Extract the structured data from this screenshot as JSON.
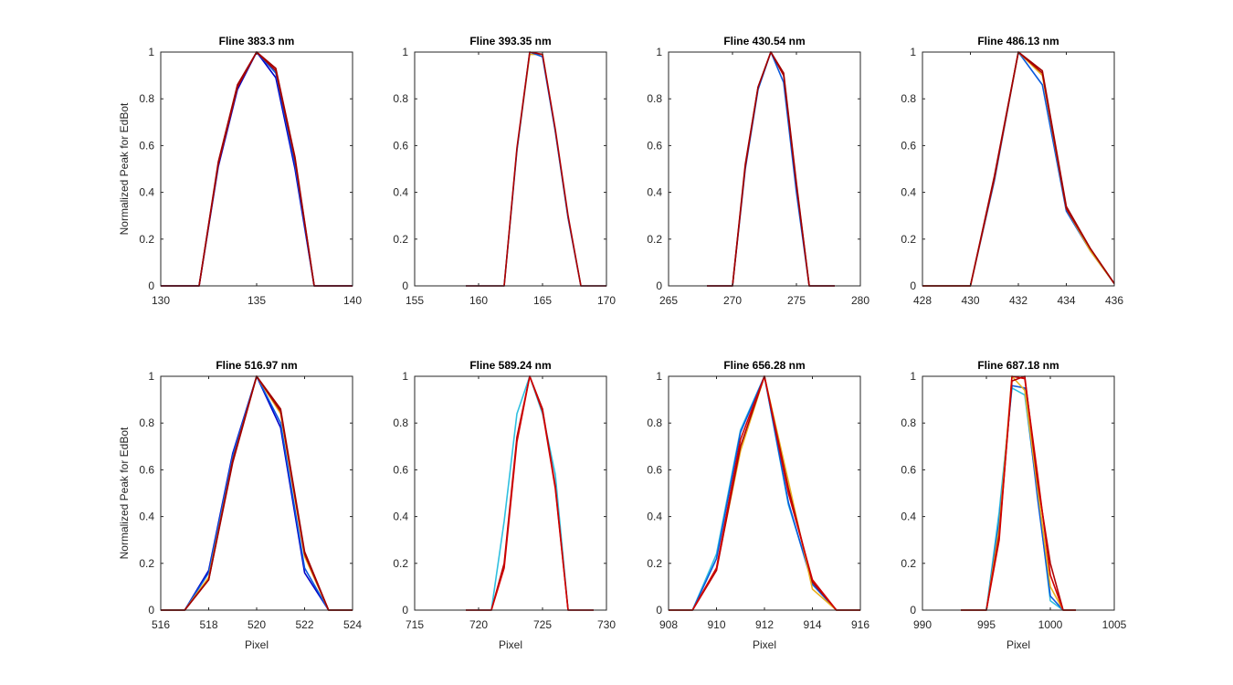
{
  "figure": {
    "background": "#ffffff"
  },
  "chart_data": [
    {
      "type": "line",
      "title": "Fline 383.3 nm",
      "xlabel": "",
      "ylabel": "Normalized Peak for EdBot",
      "xlim": [
        130,
        140
      ],
      "ylim": [
        0,
        1
      ],
      "xticks": [
        "130",
        "135",
        "140"
      ],
      "yticks": [
        "0",
        "0.2",
        "0.4",
        "0.6",
        "0.8",
        "1"
      ],
      "x": [
        130,
        131,
        132,
        133,
        134,
        135,
        136,
        137,
        138,
        139,
        140
      ],
      "series": [
        {
          "color": "#0000c8",
          "values": [
            0,
            0,
            0,
            0.51,
            0.84,
            1,
            0.89,
            0.5,
            0,
            0,
            0
          ]
        },
        {
          "color": "#0a5adc",
          "values": [
            0,
            0,
            0,
            0.52,
            0.85,
            1,
            0.91,
            0.52,
            0,
            0,
            0
          ]
        },
        {
          "color": "#b00000",
          "values": [
            0,
            0,
            0,
            0.52,
            0.85,
            1,
            0.92,
            0.54,
            0,
            0,
            0
          ]
        },
        {
          "color": "#a00000",
          "values": [
            0,
            0,
            0,
            0.53,
            0.86,
            1,
            0.93,
            0.55,
            0,
            0,
            0
          ]
        }
      ]
    },
    {
      "type": "line",
      "title": "Fline 393.35 nm",
      "xlabel": "",
      "ylabel": "",
      "xlim": [
        155,
        170
      ],
      "ylim": [
        0,
        1
      ],
      "xticks": [
        "155",
        "160",
        "165",
        "170"
      ],
      "yticks": [
        "0",
        "0.2",
        "0.4",
        "0.6",
        "0.8",
        "1"
      ],
      "x": [
        159,
        160,
        161,
        162,
        163,
        164,
        165,
        166,
        167,
        168,
        169,
        170
      ],
      "series": [
        {
          "color": "#e8b020",
          "values": [
            0,
            0,
            0,
            0,
            0.58,
            0.99,
            0.99,
            0.66,
            0.29,
            0,
            0,
            0
          ]
        },
        {
          "color": "#0a5adc",
          "values": [
            0,
            0,
            0,
            0,
            0.58,
            1,
            0.98,
            0.66,
            0.29,
            0,
            0,
            0
          ]
        },
        {
          "color": "#b00000",
          "values": [
            0,
            0,
            0,
            0,
            0.59,
            1,
            0.99,
            0.67,
            0.3,
            0,
            0,
            0
          ]
        }
      ]
    },
    {
      "type": "line",
      "title": "Fline 430.54 nm",
      "xlabel": "",
      "ylabel": "",
      "xlim": [
        265,
        280
      ],
      "ylim": [
        0,
        1
      ],
      "xticks": [
        "265",
        "270",
        "275",
        "280"
      ],
      "yticks": [
        "0",
        "0.2",
        "0.4",
        "0.6",
        "0.8",
        "1"
      ],
      "x": [
        268,
        269,
        270,
        271,
        272,
        273,
        274,
        275,
        276,
        277,
        278
      ],
      "series": [
        {
          "color": "#0a5adc",
          "values": [
            0,
            0,
            0,
            0.5,
            0.84,
            1,
            0.87,
            0.4,
            0,
            0,
            0
          ]
        },
        {
          "color": "#b00000",
          "values": [
            0,
            0,
            0,
            0.51,
            0.85,
            1,
            0.9,
            0.43,
            0,
            0,
            0
          ]
        },
        {
          "color": "#a00000",
          "values": [
            0,
            0,
            0,
            0.52,
            0.85,
            1,
            0.91,
            0.44,
            0,
            0,
            0
          ]
        }
      ]
    },
    {
      "type": "line",
      "title": "Fline 486.13 nm",
      "xlabel": "",
      "ylabel": "",
      "xlim": [
        428,
        436
      ],
      "ylim": [
        0,
        1
      ],
      "xticks": [
        "428",
        "430",
        "432",
        "434",
        "436"
      ],
      "yticks": [
        "0",
        "0.2",
        "0.4",
        "0.6",
        "0.8",
        "1"
      ],
      "x": [
        428,
        429,
        430,
        431,
        432,
        433,
        434,
        435,
        436
      ],
      "series": [
        {
          "color": "#0a5adc",
          "values": [
            0,
            0,
            0,
            0.45,
            1,
            0.86,
            0.32,
            0.15,
            0.01
          ]
        },
        {
          "color": "#e8b020",
          "values": [
            0,
            0,
            0,
            0.46,
            1,
            0.9,
            0.33,
            0.15,
            0.01
          ]
        },
        {
          "color": "#b00000",
          "values": [
            0,
            0,
            0,
            0.46,
            1,
            0.91,
            0.33,
            0.16,
            0.01
          ]
        },
        {
          "color": "#a00000",
          "values": [
            0,
            0,
            0,
            0.47,
            1,
            0.92,
            0.34,
            0.16,
            0.01
          ]
        }
      ]
    },
    {
      "type": "line",
      "title": "Fline 516.97 nm",
      "xlabel": "Pixel",
      "ylabel": "Normalized Peak for EdBot",
      "xlim": [
        516,
        524
      ],
      "ylim": [
        0,
        1
      ],
      "xticks": [
        "516",
        "518",
        "520",
        "522",
        "524"
      ],
      "yticks": [
        "0",
        "0.2",
        "0.4",
        "0.6",
        "0.8",
        "1"
      ],
      "x": [
        516,
        517,
        518,
        519,
        520,
        521,
        522,
        523,
        524
      ],
      "series": [
        {
          "color": "#0000c8",
          "values": [
            0,
            0,
            0.17,
            0.67,
            1,
            0.78,
            0.16,
            0,
            0
          ]
        },
        {
          "color": "#0a5adc",
          "values": [
            0,
            0,
            0.16,
            0.66,
            1,
            0.8,
            0.18,
            0,
            0
          ]
        },
        {
          "color": "#e8b020",
          "values": [
            0,
            0,
            0.14,
            0.64,
            1,
            0.84,
            0.23,
            0,
            0
          ]
        },
        {
          "color": "#b00000",
          "values": [
            0,
            0,
            0.13,
            0.64,
            1,
            0.85,
            0.24,
            0,
            0
          ]
        },
        {
          "color": "#a00000",
          "values": [
            0,
            0,
            0.13,
            0.63,
            1,
            0.86,
            0.25,
            0,
            0
          ]
        }
      ]
    },
    {
      "type": "line",
      "title": "Fline 589.24 nm",
      "xlabel": "Pixel",
      "ylabel": "",
      "xlim": [
        715,
        730
      ],
      "ylim": [
        0,
        1
      ],
      "xticks": [
        "715",
        "720",
        "725",
        "730"
      ],
      "yticks": [
        "0",
        "0.2",
        "0.4",
        "0.6",
        "0.8",
        "1"
      ],
      "x": [
        719,
        720,
        721,
        722,
        723,
        724,
        725,
        726,
        727,
        728,
        729
      ],
      "series": [
        {
          "color": "#30c0e0",
          "values": [
            0,
            0,
            0,
            0.38,
            0.84,
            1,
            0.84,
            0.58,
            0,
            0,
            0
          ]
        },
        {
          "color": "#b00000",
          "values": [
            0,
            0,
            0,
            0.2,
            0.74,
            1,
            0.86,
            0.53,
            0,
            0,
            0
          ]
        },
        {
          "color": "#d00000",
          "values": [
            0,
            0,
            0,
            0.18,
            0.72,
            1,
            0.85,
            0.52,
            0,
            0,
            0
          ]
        }
      ]
    },
    {
      "type": "line",
      "title": "Fline 656.28 nm",
      "xlabel": "Pixel",
      "ylabel": "",
      "xlim": [
        908,
        916
      ],
      "ylim": [
        0,
        1
      ],
      "xticks": [
        "908",
        "910",
        "912",
        "914",
        "916"
      ],
      "yticks": [
        "0",
        "0.2",
        "0.4",
        "0.6",
        "0.8",
        "1"
      ],
      "x": [
        908,
        909,
        910,
        911,
        912,
        913,
        914,
        915,
        916
      ],
      "series": [
        {
          "color": "#30c0e0",
          "values": [
            0,
            0,
            0.24,
            0.77,
            1,
            0.45,
            0.12,
            0,
            0
          ]
        },
        {
          "color": "#0a5adc",
          "values": [
            0,
            0,
            0.22,
            0.76,
            1,
            0.46,
            0.11,
            0,
            0
          ]
        },
        {
          "color": "#e8b020",
          "values": [
            0,
            0,
            0.18,
            0.68,
            1,
            0.55,
            0.09,
            0,
            0
          ]
        },
        {
          "color": "#b00000",
          "values": [
            0,
            0,
            0.17,
            0.7,
            1,
            0.52,
            0.12,
            0,
            0
          ]
        },
        {
          "color": "#d00000",
          "values": [
            0,
            0,
            0.18,
            0.73,
            1,
            0.5,
            0.13,
            0,
            0
          ]
        }
      ]
    },
    {
      "type": "line",
      "title": "Fline 687.18 nm",
      "xlabel": "Pixel",
      "ylabel": "",
      "xlim": [
        990,
        1005
      ],
      "ylim": [
        0,
        1
      ],
      "xticks": [
        "990",
        "995",
        "1000",
        "1005"
      ],
      "yticks": [
        "0",
        "0.2",
        "0.4",
        "0.6",
        "0.8",
        "1"
      ],
      "x": [
        993,
        994,
        995,
        996,
        997,
        998,
        999,
        1000,
        1001,
        1002
      ],
      "series": [
        {
          "color": "#30c0e0",
          "values": [
            0,
            0,
            0,
            0.42,
            0.95,
            0.92,
            0.5,
            0.04,
            0,
            0
          ]
        },
        {
          "color": "#0a5adc",
          "values": [
            0,
            0,
            0,
            0.38,
            0.96,
            0.95,
            0.48,
            0.06,
            0,
            0
          ]
        },
        {
          "color": "#e8b020",
          "values": [
            0,
            0,
            0,
            0.35,
            1,
            0.94,
            0.52,
            0.1,
            0,
            0
          ]
        },
        {
          "color": "#b00000",
          "values": [
            0,
            0,
            0,
            0.32,
            0.98,
            1,
            0.55,
            0.2,
            0,
            0
          ]
        },
        {
          "color": "#d00000",
          "values": [
            0,
            0,
            0,
            0.3,
            1,
            0.99,
            0.58,
            0.15,
            0,
            0
          ]
        }
      ]
    }
  ]
}
